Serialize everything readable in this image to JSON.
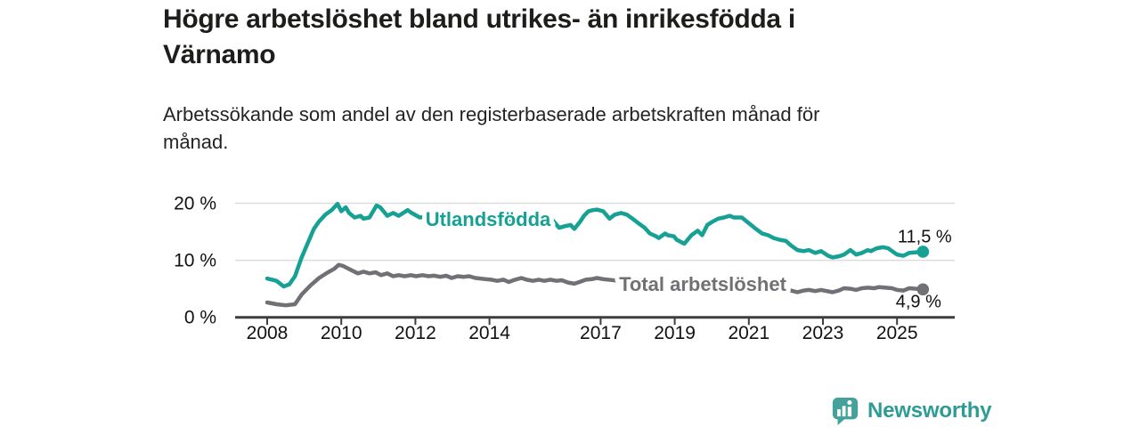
{
  "header": {
    "title_lines": [
      "Högre arbetslöshet bland utrikes- än inrikesfödda i",
      "Värnamo"
    ],
    "subtitle_lines": [
      "Arbetssökande som andel av den registerbaserade arbetskraften månad för",
      "månad."
    ]
  },
  "chart_data": {
    "type": "line",
    "title": "Högre arbetslöshet bland utrikes- än inrikesfödda i Värnamo",
    "subtitle": "Arbetssökande som andel av den registerbaserade arbetskraften månad för månad.",
    "unit": "%",
    "grid": "horizontal-light",
    "legend_position": "inline-on-line",
    "x_axis": {
      "ticks": [
        2008,
        2010,
        2012,
        2014,
        2017,
        2019,
        2021,
        2023,
        2025
      ],
      "tick_labels": [
        "2008",
        "2010",
        "2012",
        "2014",
        "2017",
        "2019",
        "2021",
        "2023",
        "2025"
      ],
      "range": [
        2008,
        2025.7
      ]
    },
    "y_axis": {
      "ticks": [
        0,
        10,
        20
      ],
      "tick_labels": [
        "0 %",
        "10 %",
        "20 %"
      ],
      "grid_ticks": [
        10,
        20
      ],
      "range": [
        0,
        21
      ]
    },
    "series": [
      {
        "name": "Utlandsfödda",
        "color": "#17a094",
        "end_label": "11,5 %",
        "end_value": 11.5,
        "points": [
          [
            2008.0,
            6.8
          ],
          [
            2008.25,
            6.4
          ],
          [
            2008.45,
            5.4
          ],
          [
            2008.6,
            5.8
          ],
          [
            2008.75,
            7.2
          ],
          [
            2008.93,
            10.5
          ],
          [
            2009.1,
            13.1
          ],
          [
            2009.26,
            15.5
          ],
          [
            2009.4,
            16.8
          ],
          [
            2009.57,
            18.0
          ],
          [
            2009.74,
            18.8
          ],
          [
            2009.9,
            19.9
          ],
          [
            2010.0,
            18.6
          ],
          [
            2010.12,
            19.3
          ],
          [
            2010.21,
            18.3
          ],
          [
            2010.36,
            17.5
          ],
          [
            2010.52,
            17.8
          ],
          [
            2010.6,
            17.3
          ],
          [
            2010.76,
            17.5
          ],
          [
            2010.95,
            19.6
          ],
          [
            2011.05,
            19.3
          ],
          [
            2011.24,
            17.8
          ],
          [
            2011.4,
            18.3
          ],
          [
            2011.55,
            17.8
          ],
          [
            2011.79,
            18.8
          ],
          [
            2011.9,
            18.3
          ],
          [
            2012.12,
            17.5
          ],
          [
            2012.5,
            17.9
          ],
          [
            2013.0,
            17.5
          ],
          [
            2013.5,
            17.3
          ],
          [
            2014.0,
            17.6
          ],
          [
            2014.5,
            17.2
          ],
          [
            2015.0,
            16.9
          ],
          [
            2015.4,
            17.2
          ],
          [
            2015.71,
            17.0
          ],
          [
            2015.88,
            15.7
          ],
          [
            2016.05,
            16.0
          ],
          [
            2016.19,
            16.2
          ],
          [
            2016.29,
            15.5
          ],
          [
            2016.45,
            16.8
          ],
          [
            2016.55,
            17.8
          ],
          [
            2016.67,
            18.6
          ],
          [
            2016.79,
            18.8
          ],
          [
            2016.9,
            18.9
          ],
          [
            2017.07,
            18.6
          ],
          [
            2017.24,
            17.3
          ],
          [
            2017.38,
            18.0
          ],
          [
            2017.55,
            18.3
          ],
          [
            2017.71,
            18.0
          ],
          [
            2017.86,
            17.3
          ],
          [
            2018.02,
            16.5
          ],
          [
            2018.19,
            15.7
          ],
          [
            2018.33,
            14.7
          ],
          [
            2018.5,
            14.2
          ],
          [
            2018.57,
            13.9
          ],
          [
            2018.74,
            14.7
          ],
          [
            2018.81,
            14.4
          ],
          [
            2018.98,
            14.2
          ],
          [
            2019.05,
            13.6
          ],
          [
            2019.26,
            12.9
          ],
          [
            2019.45,
            14.4
          ],
          [
            2019.62,
            15.2
          ],
          [
            2019.74,
            14.4
          ],
          [
            2019.88,
            16.2
          ],
          [
            2020.0,
            16.7
          ],
          [
            2020.17,
            17.3
          ],
          [
            2020.33,
            17.5
          ],
          [
            2020.48,
            17.8
          ],
          [
            2020.6,
            17.5
          ],
          [
            2020.81,
            17.5
          ],
          [
            2021.0,
            16.5
          ],
          [
            2021.19,
            15.5
          ],
          [
            2021.36,
            14.7
          ],
          [
            2021.52,
            14.4
          ],
          [
            2021.67,
            13.9
          ],
          [
            2021.83,
            13.6
          ],
          [
            2022.0,
            13.4
          ],
          [
            2022.14,
            12.6
          ],
          [
            2022.31,
            11.8
          ],
          [
            2022.48,
            11.6
          ],
          [
            2022.62,
            11.8
          ],
          [
            2022.79,
            11.3
          ],
          [
            2022.95,
            11.6
          ],
          [
            2023.14,
            10.8
          ],
          [
            2023.26,
            10.5
          ],
          [
            2023.43,
            10.7
          ],
          [
            2023.57,
            11.0
          ],
          [
            2023.74,
            11.8
          ],
          [
            2023.9,
            11.0
          ],
          [
            2024.05,
            11.3
          ],
          [
            2024.21,
            11.8
          ],
          [
            2024.29,
            11.6
          ],
          [
            2024.45,
            12.1
          ],
          [
            2024.62,
            12.3
          ],
          [
            2024.76,
            12.1
          ],
          [
            2025.0,
            11.0
          ],
          [
            2025.17,
            10.8
          ],
          [
            2025.33,
            11.3
          ],
          [
            2025.7,
            11.5
          ]
        ]
      },
      {
        "name": "Total arbetslöshet",
        "color": "#717074",
        "end_label": "4,9 %",
        "end_value": 4.9,
        "points": [
          [
            2008.0,
            2.6
          ],
          [
            2008.25,
            2.3
          ],
          [
            2008.5,
            2.1
          ],
          [
            2008.75,
            2.3
          ],
          [
            2008.93,
            4.0
          ],
          [
            2009.17,
            5.6
          ],
          [
            2009.4,
            6.9
          ],
          [
            2009.64,
            7.9
          ],
          [
            2009.81,
            8.5
          ],
          [
            2009.93,
            9.2
          ],
          [
            2010.05,
            9.0
          ],
          [
            2010.29,
            8.2
          ],
          [
            2010.45,
            7.7
          ],
          [
            2010.6,
            8.0
          ],
          [
            2010.76,
            7.7
          ],
          [
            2010.93,
            7.9
          ],
          [
            2011.07,
            7.4
          ],
          [
            2011.24,
            7.7
          ],
          [
            2011.4,
            7.2
          ],
          [
            2011.55,
            7.4
          ],
          [
            2011.71,
            7.2
          ],
          [
            2011.88,
            7.4
          ],
          [
            2012.02,
            7.2
          ],
          [
            2012.19,
            7.4
          ],
          [
            2012.36,
            7.2
          ],
          [
            2012.5,
            7.3
          ],
          [
            2012.67,
            7.1
          ],
          [
            2012.83,
            7.3
          ],
          [
            2012.98,
            6.9
          ],
          [
            2013.14,
            7.2
          ],
          [
            2013.31,
            7.1
          ],
          [
            2013.45,
            7.2
          ],
          [
            2013.62,
            6.9
          ],
          [
            2013.9,
            6.7
          ],
          [
            2014.05,
            6.6
          ],
          [
            2014.21,
            6.4
          ],
          [
            2014.38,
            6.6
          ],
          [
            2014.52,
            6.2
          ],
          [
            2014.69,
            6.6
          ],
          [
            2014.86,
            6.9
          ],
          [
            2015.0,
            6.6
          ],
          [
            2015.17,
            6.4
          ],
          [
            2015.33,
            6.6
          ],
          [
            2015.48,
            6.4
          ],
          [
            2015.64,
            6.6
          ],
          [
            2015.81,
            6.4
          ],
          [
            2015.95,
            6.5
          ],
          [
            2016.12,
            6.1
          ],
          [
            2016.29,
            5.9
          ],
          [
            2016.43,
            6.2
          ],
          [
            2016.6,
            6.6
          ],
          [
            2016.76,
            6.7
          ],
          [
            2016.9,
            6.9
          ],
          [
            2017.07,
            6.7
          ],
          [
            2017.5,
            6.4
          ],
          [
            2018.0,
            6.0
          ],
          [
            2018.5,
            5.6
          ],
          [
            2019.0,
            5.3
          ],
          [
            2019.5,
            5.2
          ],
          [
            2020.0,
            5.8
          ],
          [
            2020.5,
            6.2
          ],
          [
            2021.0,
            5.9
          ],
          [
            2021.5,
            5.2
          ],
          [
            2022.0,
            4.6
          ],
          [
            2022.14,
            4.7
          ],
          [
            2022.31,
            4.4
          ],
          [
            2022.48,
            4.7
          ],
          [
            2022.62,
            4.8
          ],
          [
            2022.79,
            4.6
          ],
          [
            2022.95,
            4.8
          ],
          [
            2023.1,
            4.6
          ],
          [
            2023.26,
            4.4
          ],
          [
            2023.43,
            4.7
          ],
          [
            2023.57,
            5.1
          ],
          [
            2023.74,
            5.0
          ],
          [
            2023.9,
            4.8
          ],
          [
            2024.05,
            5.1
          ],
          [
            2024.21,
            5.2
          ],
          [
            2024.38,
            5.1
          ],
          [
            2024.52,
            5.3
          ],
          [
            2024.69,
            5.2
          ],
          [
            2024.86,
            5.1
          ],
          [
            2025.0,
            4.8
          ],
          [
            2025.17,
            4.7
          ],
          [
            2025.33,
            5.1
          ],
          [
            2025.7,
            4.9
          ]
        ]
      }
    ]
  },
  "colors": {
    "axis": "#3e3e3e",
    "gridline": "#dcdcdc",
    "tick_text": "#111111",
    "value_text": "#111111"
  },
  "footer": {
    "brand": "Newsworthy",
    "brand_color": "#2e9b95",
    "icon_color": "#45a29b"
  }
}
